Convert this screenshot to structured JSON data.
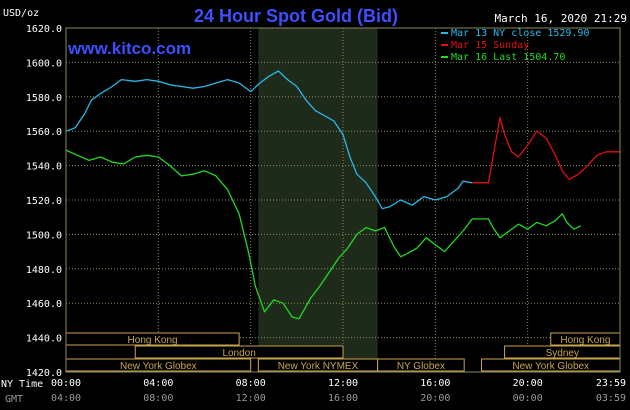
{
  "header": {
    "title": "24 Hour Spot Gold (Bid)",
    "date_time": "March 16, 2020 21:29",
    "y_unit": "USD/oz",
    "watermark": "www.kitco.com",
    "tz_labels": [
      "NY Time",
      "GMT"
    ]
  },
  "colors": {
    "background": "#000000",
    "title": "#3c50ff",
    "watermark": "#3c50ff",
    "grid": "#8a8a5a",
    "shade": "#1e2a1a",
    "session": "#c8a54a",
    "series_close": "#2ab8e8",
    "series_sunday": "#e11010",
    "series_last": "#22d822",
    "axis_text": "#ffffff",
    "gmt_text": "#9a9a9a"
  },
  "sessions": {
    "rows": [
      [
        {
          "name": "Hong Kong",
          "start": "00:00",
          "end": "07:30"
        },
        {
          "name": "Hong Kong",
          "start": "21:00",
          "end": "24:00"
        }
      ],
      [
        {
          "name": "London",
          "start": "03:00",
          "end": "12:00"
        },
        {
          "name": "Sydney",
          "start": "19:00",
          "end": "24:00"
        }
      ],
      [
        {
          "name": "New York Globex",
          "start": "00:00",
          "end": "08:00"
        },
        {
          "name": "New York NYMEX",
          "start": "08:20",
          "end": "13:30"
        },
        {
          "name": "NY Globex",
          "start": "13:30",
          "end": "17:15"
        },
        {
          "name": "New York Globex",
          "start": "18:00",
          "end": "24:00"
        }
      ]
    ],
    "shaded_period": {
      "start": "08:20",
      "end": "13:30"
    }
  },
  "chart_data": {
    "type": "line",
    "title": "24 Hour Spot Gold (Bid)",
    "ylabel": "USD/oz",
    "xlabel": "",
    "ylim": [
      1420,
      1620
    ],
    "yticks": [
      1420,
      1440,
      1460,
      1480,
      1500,
      1520,
      1540,
      1560,
      1580,
      1600,
      1620
    ],
    "xlim": [
      0,
      24
    ],
    "x_ticks_ny": [
      "00:00",
      "04:00",
      "08:00",
      "12:00",
      "16:00",
      "20:00",
      "23:59"
    ],
    "x_ticks_gmt": [
      "04:00",
      "08:00",
      "12:00",
      "16:00",
      "20:00",
      "00:00",
      "03:59"
    ],
    "grid": true,
    "legend": "top-right",
    "series": [
      {
        "name": "Mar 13 NY close 1529.90",
        "color_key": "series_close",
        "points": [
          [
            0,
            1560
          ],
          [
            0.4,
            1562
          ],
          [
            0.8,
            1570
          ],
          [
            1.1,
            1578
          ],
          [
            1.5,
            1582
          ],
          [
            2.0,
            1586
          ],
          [
            2.4,
            1590
          ],
          [
            3.0,
            1589
          ],
          [
            3.5,
            1590
          ],
          [
            4.0,
            1589
          ],
          [
            4.5,
            1587
          ],
          [
            5.0,
            1586
          ],
          [
            5.5,
            1585
          ],
          [
            6.0,
            1586
          ],
          [
            6.5,
            1588
          ],
          [
            7.0,
            1590
          ],
          [
            7.5,
            1588
          ],
          [
            8.0,
            1583
          ],
          [
            8.4,
            1588
          ],
          [
            8.8,
            1592
          ],
          [
            9.2,
            1595
          ],
          [
            9.6,
            1590
          ],
          [
            10.0,
            1586
          ],
          [
            10.4,
            1578
          ],
          [
            10.8,
            1572
          ],
          [
            11.2,
            1569
          ],
          [
            11.6,
            1566
          ],
          [
            12.0,
            1558
          ],
          [
            12.3,
            1545
          ],
          [
            12.6,
            1535
          ],
          [
            13.0,
            1530
          ],
          [
            13.4,
            1522
          ],
          [
            13.7,
            1515
          ],
          [
            14.0,
            1516
          ],
          [
            14.5,
            1520
          ],
          [
            15.0,
            1517
          ],
          [
            15.5,
            1522
          ],
          [
            16.0,
            1520
          ],
          [
            16.5,
            1522
          ],
          [
            17.0,
            1527
          ],
          [
            17.2,
            1531
          ],
          [
            17.6,
            1530
          ]
        ]
      },
      {
        "name": "Mar 15 Sunday",
        "color_key": "series_sunday",
        "points": [
          [
            17.6,
            1530
          ],
          [
            18.3,
            1530
          ],
          [
            18.5,
            1545
          ],
          [
            18.8,
            1568
          ],
          [
            19.0,
            1558
          ],
          [
            19.3,
            1548
          ],
          [
            19.6,
            1545
          ],
          [
            20.0,
            1552
          ],
          [
            20.4,
            1560
          ],
          [
            20.8,
            1556
          ],
          [
            21.2,
            1546
          ],
          [
            21.5,
            1537
          ],
          [
            21.8,
            1532
          ],
          [
            22.2,
            1535
          ],
          [
            22.6,
            1540
          ],
          [
            23.0,
            1546
          ],
          [
            23.4,
            1548
          ],
          [
            23.99,
            1548
          ]
        ]
      },
      {
        "name": "Mar 16 Last 1504.70",
        "color_key": "series_last",
        "points": [
          [
            0,
            1549
          ],
          [
            0.5,
            1546
          ],
          [
            1.0,
            1543
          ],
          [
            1.5,
            1545
          ],
          [
            2.0,
            1542
          ],
          [
            2.5,
            1541
          ],
          [
            3.0,
            1545
          ],
          [
            3.5,
            1546
          ],
          [
            4.0,
            1545
          ],
          [
            4.5,
            1540
          ],
          [
            5.0,
            1534
          ],
          [
            5.5,
            1535
          ],
          [
            6.0,
            1537
          ],
          [
            6.5,
            1534
          ],
          [
            7.0,
            1526
          ],
          [
            7.5,
            1512
          ],
          [
            7.9,
            1490
          ],
          [
            8.2,
            1470
          ],
          [
            8.6,
            1455
          ],
          [
            9.0,
            1462
          ],
          [
            9.4,
            1460
          ],
          [
            9.8,
            1452
          ],
          [
            10.1,
            1451
          ],
          [
            10.6,
            1463
          ],
          [
            11.0,
            1470
          ],
          [
            11.4,
            1478
          ],
          [
            11.8,
            1486
          ],
          [
            12.2,
            1492
          ],
          [
            12.6,
            1500
          ],
          [
            13.0,
            1504
          ],
          [
            13.4,
            1502
          ],
          [
            13.8,
            1504
          ],
          [
            14.2,
            1493
          ],
          [
            14.5,
            1487
          ],
          [
            14.8,
            1489
          ],
          [
            15.2,
            1492
          ],
          [
            15.6,
            1498
          ],
          [
            16.0,
            1494
          ],
          [
            16.4,
            1490
          ],
          [
            16.8,
            1496
          ],
          [
            17.2,
            1502
          ],
          [
            17.6,
            1509
          ],
          [
            18.3,
            1509
          ],
          [
            18.5,
            1504
          ],
          [
            18.8,
            1498
          ],
          [
            19.2,
            1502
          ],
          [
            19.6,
            1506
          ],
          [
            20.0,
            1503
          ],
          [
            20.4,
            1507
          ],
          [
            20.8,
            1505
          ],
          [
            21.2,
            1508
          ],
          [
            21.5,
            1512
          ],
          [
            21.7,
            1507
          ],
          [
            22.0,
            1503
          ],
          [
            22.3,
            1505
          ]
        ]
      }
    ]
  }
}
